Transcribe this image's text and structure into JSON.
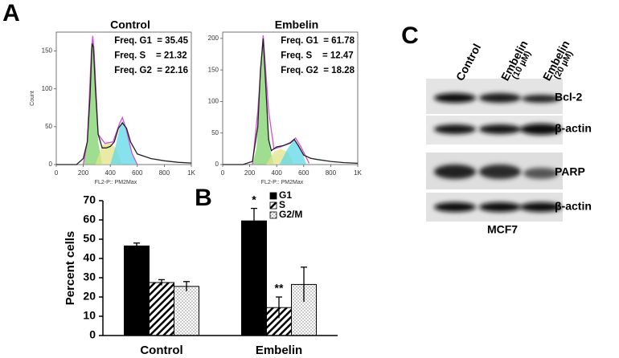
{
  "panel_labels": [
    "A",
    "B",
    "C"
  ],
  "chart_data": [
    {
      "type": "area",
      "title": "Control",
      "xlabel": "FL2-P:: PM2Max",
      "ylabel": "Count",
      "annotations": [
        "Freq. G1  = 35.45",
        "Freq. S    = 21.32",
        "Freq. G2  = 22.16"
      ],
      "xlim": [
        0,
        1000
      ],
      "xticks": [
        0,
        200,
        400,
        600,
        800,
        {
          "value": 1000,
          "label": "1K"
        }
      ],
      "ylim": [
        0,
        175
      ],
      "yticks": [
        0,
        50,
        100,
        150
      ],
      "series": [
        {
          "color": "#7fd36b",
          "style": "fill",
          "x": [
            200,
            230,
            250,
            260,
            270,
            280,
            290,
            310,
            340
          ],
          "values": [
            0,
            30,
            100,
            150,
            165,
            150,
            100,
            30,
            0
          ]
        },
        {
          "color": "#e3e38a",
          "style": "fill",
          "x": [
            290,
            340,
            390,
            440,
            490
          ],
          "values": [
            0,
            25,
            30,
            22,
            0
          ]
        },
        {
          "color": "#5fd8e8",
          "style": "fill",
          "x": [
            400,
            440,
            470,
            490,
            520,
            560,
            600
          ],
          "values": [
            0,
            25,
            50,
            58,
            45,
            15,
            0
          ]
        },
        {
          "color": "#d64fd6",
          "style": "line",
          "x": [
            200,
            230,
            260,
            270,
            280,
            310,
            360,
            420,
            470,
            490,
            520,
            560,
            600
          ],
          "values": [
            0,
            30,
            150,
            170,
            150,
            40,
            28,
            30,
            55,
            62,
            45,
            15,
            0
          ]
        },
        {
          "color": "#222222",
          "style": "line",
          "x": [
            0,
            150,
            200,
            230,
            250,
            265,
            275,
            290,
            310,
            340,
            370,
            400,
            430,
            460,
            490,
            520,
            550,
            600,
            700,
            800,
            900,
            1000
          ],
          "values": [
            0,
            0,
            8,
            30,
            90,
            160,
            155,
            100,
            40,
            22,
            22,
            24,
            30,
            48,
            55,
            48,
            30,
            14,
            8,
            5,
            3,
            2
          ]
        }
      ]
    },
    {
      "type": "area",
      "title": "Embelin",
      "xlabel": "FL2-P:: PM2Max",
      "annotations": [
        "Freq. G1  = 61.78",
        "Freq. S    = 12.47",
        "Freq. G2  = 18.28"
      ],
      "xlim": [
        0,
        1000
      ],
      "xticks": [
        0,
        200,
        400,
        600,
        800,
        {
          "value": 1000,
          "label": "1K"
        }
      ],
      "ylim": [
        0,
        210
      ],
      "yticks": [
        0,
        50,
        100,
        150,
        200
      ],
      "series": [
        {
          "color": "#7fd36b",
          "style": "fill",
          "x": [
            220,
            250,
            270,
            290,
            300,
            310,
            330,
            350,
            380
          ],
          "values": [
            0,
            25,
            90,
            180,
            200,
            180,
            90,
            25,
            0
          ]
        },
        {
          "color": "#e3e38a",
          "style": "fill",
          "x": [
            320,
            380,
            430,
            480,
            530
          ],
          "values": [
            0,
            20,
            25,
            20,
            0
          ]
        },
        {
          "color": "#5fd8e8",
          "style": "fill",
          "x": [
            420,
            480,
            530,
            580,
            620
          ],
          "values": [
            0,
            25,
            40,
            25,
            0
          ]
        },
        {
          "color": "#d64fd6",
          "style": "line",
          "x": [
            220,
            260,
            300,
            340,
            380,
            430,
            500,
            540,
            580,
            640
          ],
          "values": [
            0,
            85,
            205,
            85,
            25,
            28,
            35,
            42,
            28,
            2
          ]
        },
        {
          "color": "#222222",
          "style": "line",
          "x": [
            0,
            150,
            220,
            260,
            280,
            300,
            320,
            340,
            360,
            400,
            450,
            500,
            530,
            560,
            600,
            650,
            700,
            800,
            900,
            1000
          ],
          "values": [
            0,
            0,
            5,
            60,
            150,
            200,
            120,
            40,
            22,
            28,
            30,
            34,
            40,
            30,
            15,
            10,
            8,
            5,
            3,
            2
          ]
        }
      ]
    },
    {
      "type": "bar",
      "ylabel": "Percent cells",
      "categories": [
        "Control",
        "Embelin"
      ],
      "ylim": [
        0,
        70
      ],
      "yticks": [
        0,
        10,
        20,
        30,
        40,
        50,
        60,
        70
      ],
      "annotations": [
        "*",
        "**"
      ],
      "series": [
        {
          "name": "G1",
          "pattern": "solid",
          "values": [
            46.5,
            59.5
          ],
          "errors": [
            1.5,
            6.5
          ]
        },
        {
          "name": "S",
          "pattern": "hatch",
          "values": [
            27.5,
            14.5
          ],
          "errors": [
            1.5,
            5.5
          ]
        },
        {
          "name": "G2/M",
          "pattern": "dots",
          "values": [
            25.5,
            26.5
          ],
          "errors": [
            2.5,
            9
          ]
        }
      ]
    }
  ],
  "blot": {
    "lanes": [
      [
        "Control"
      ],
      [
        "Embelin",
        "(10 µM)"
      ],
      [
        "Embelin",
        "(20 µM)"
      ]
    ],
    "rows": [
      "Bcl-2",
      "β-actin",
      "PARP",
      "β-actin"
    ],
    "cell_line": "MCF7"
  }
}
